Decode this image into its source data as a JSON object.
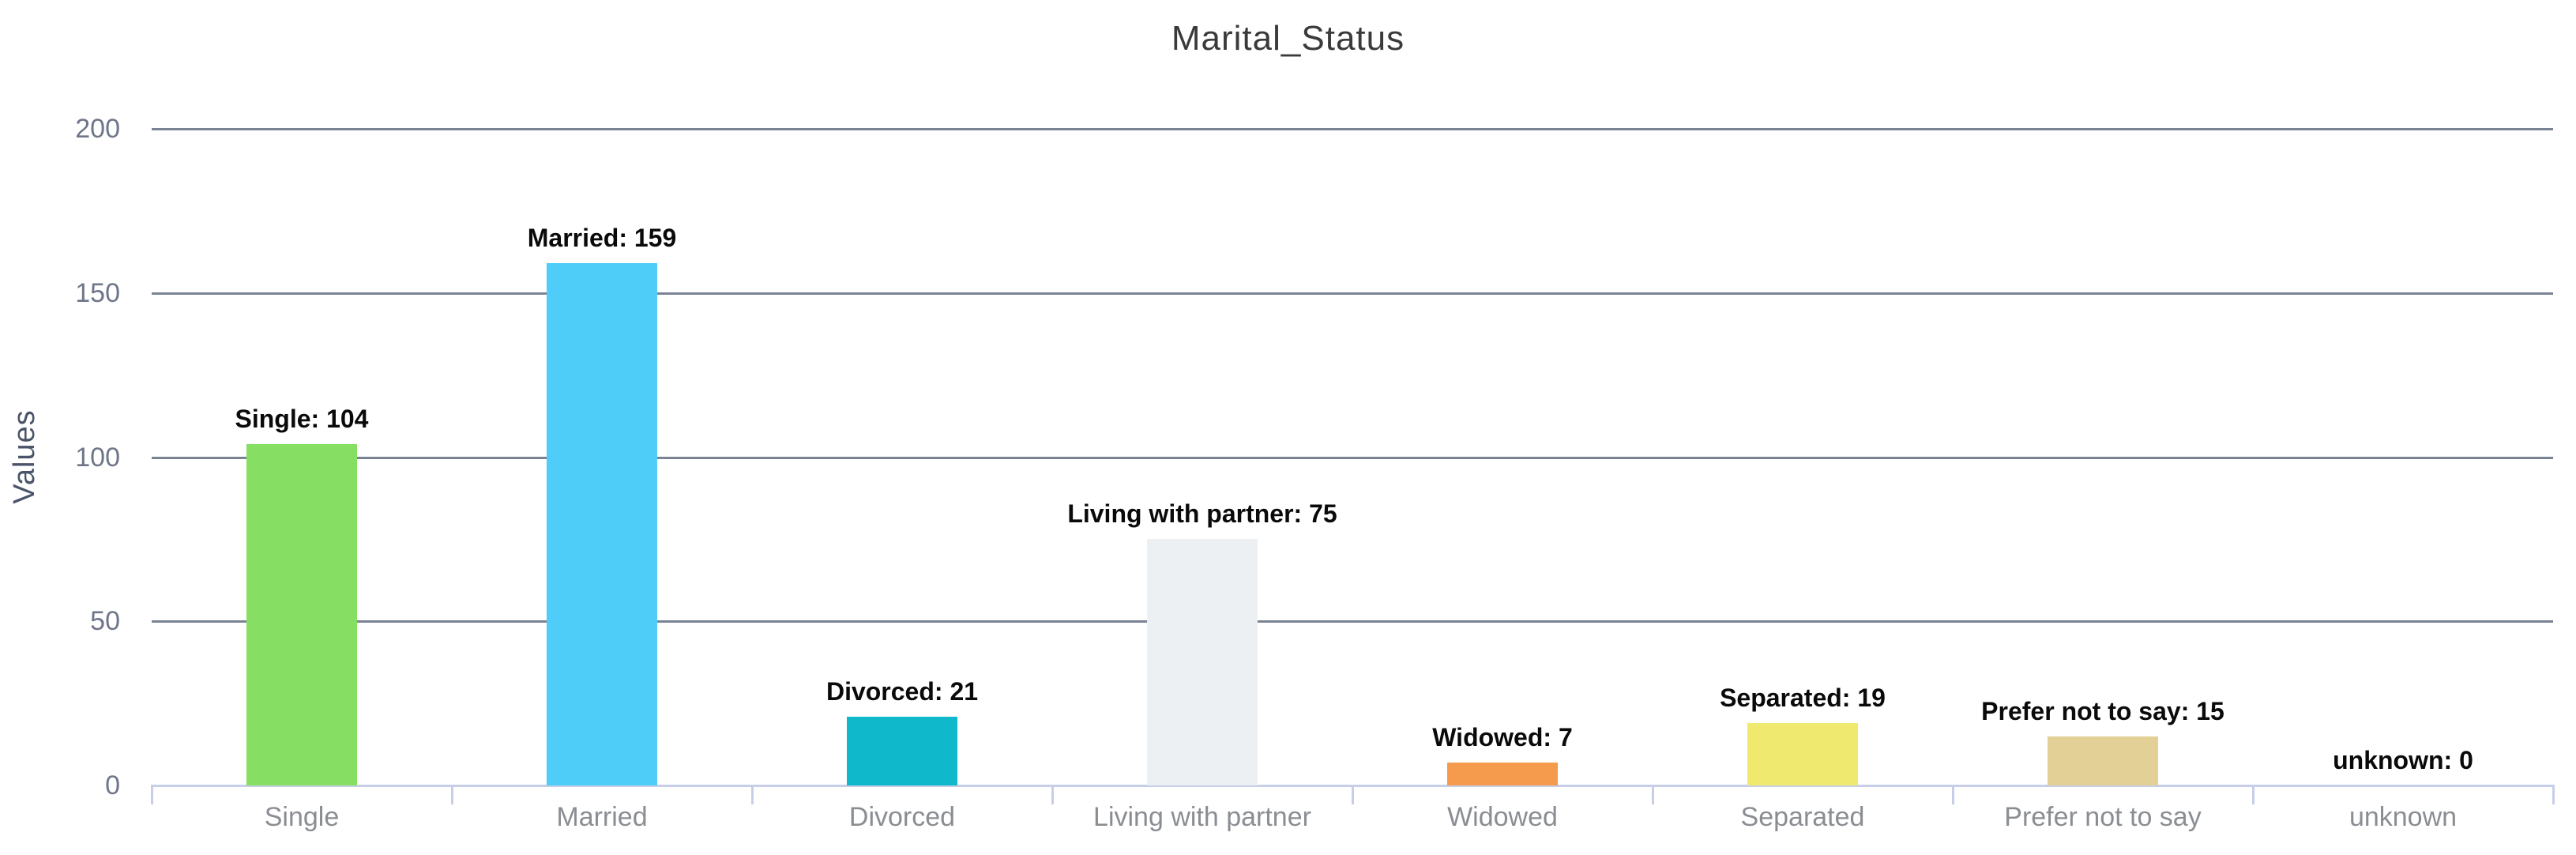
{
  "chart_data": {
    "type": "bar",
    "title": "Marital_Status",
    "xlabel": "",
    "ylabel": "Values",
    "categories": [
      "Single",
      "Married",
      "Divorced",
      "Living with partner",
      "Widowed",
      "Separated",
      "Prefer not to say",
      "unknown"
    ],
    "values": [
      104,
      159,
      21,
      75,
      7,
      19,
      15,
      0
    ],
    "bar_labels": [
      "Single: 104",
      "Married: 159",
      "Divorced: 21",
      "Living with partner: 75",
      "Widowed: 7",
      "Separated: 19",
      "Prefer not to say: 15",
      "unknown: 0"
    ],
    "bar_colors": [
      "#86df63",
      "#4ecdf9",
      "#0fb8cb",
      "#edf0f2",
      "#f59b4d",
      "#f0e96f",
      "#e3d096",
      null
    ],
    "yticks": [
      "0",
      "50",
      "100",
      "150",
      "200"
    ],
    "ylim": [
      0,
      200
    ],
    "grid": "horizontal",
    "legend": "none"
  },
  "colors": {
    "gridline": "#7a8394",
    "axis_line": "#c7cee7",
    "tick_mark": "#c7cee7",
    "title_text": "#3a3a3a",
    "y_tick_text": "#6f7689",
    "category_text": "#8a8d92",
    "value_label_text": "#0a0a0a",
    "y_axis_title_text": "#4a5468",
    "background": "#ffffff"
  }
}
